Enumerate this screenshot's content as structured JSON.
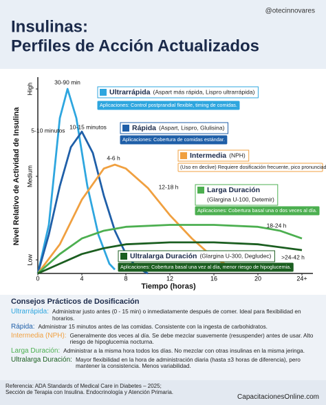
{
  "header": {
    "handle": "@otecinnovares",
    "title_line1": "Insulinas:",
    "title_line2": "Perfiles de Acción Actualizados"
  },
  "chart_data": {
    "type": "line",
    "y_label": "Nivel Relativo de Actividad de Insulina",
    "x_label": "Tiempo (horas)",
    "xlim": [
      0,
      24
    ],
    "ylim": [
      0,
      100
    ],
    "xticks": [
      0,
      4,
      8,
      12,
      16,
      20,
      {
        "value": 24,
        "label": "24+"
      }
    ],
    "yticks": [
      {
        "value": 7,
        "label": "Low"
      },
      {
        "value": 50,
        "label": "Medium"
      },
      {
        "value": 95,
        "label": "High"
      }
    ],
    "annotations": [
      "30-90 min",
      "5-10 minutos",
      "10-15 minutos",
      "4-6 h",
      "12-18 h",
      "18-24 h",
      ">24-42 h"
    ],
    "series": [
      {
        "name": "Ultrarrápida",
        "detail": "(Aspart más rápida, Lispro ultrarrápida)",
        "note": "Aplicaciones: Control postprandial flexible, timing de comidas.",
        "color": "#2ea6df",
        "x": [
          0,
          1,
          2,
          2.7,
          3.5,
          4.5,
          5.5,
          6.5,
          7
        ],
        "values": [
          0,
          25,
          80,
          95,
          80,
          45,
          20,
          5,
          2
        ]
      },
      {
        "name": "Rápida",
        "detail": "(Aspart, Lispro, Glulisina)",
        "note": "Aplicaciones: Cobertura de comidas estándar.",
        "color": "#1f5fa8",
        "x": [
          0,
          1,
          2,
          3,
          4,
          5,
          6,
          7,
          8,
          9,
          10
        ],
        "values": [
          0,
          20,
          45,
          65,
          73,
          62,
          40,
          22,
          10,
          3,
          0
        ]
      },
      {
        "name": "Intermedia",
        "detail": "(NPH)",
        "note": "(Uso en declive) Requiere dosificación frecuente, pico pronunciado.",
        "color": "#f0a040",
        "x": [
          0,
          2,
          4,
          6,
          7,
          8,
          10,
          12,
          14,
          16,
          18
        ],
        "values": [
          0,
          15,
          38,
          54,
          56,
          54,
          44,
          30,
          18,
          8,
          2
        ]
      },
      {
        "name": "Larga Duración",
        "detail": "(Glargina U-100, Detemir)",
        "note": "Aplicaciones: Cobertura basal una o dos veces al día.",
        "color": "#4caf50",
        "x": [
          0,
          2,
          4,
          6,
          8,
          12,
          16,
          20,
          22,
          24
        ],
        "values": [
          0,
          10,
          18,
          22,
          24,
          25,
          25,
          24,
          22,
          18
        ]
      },
      {
        "name": "Ultralarga Duración",
        "detail": "(Glargina U-300, Degludec)",
        "note": "Aplicaciones: Cobertura basal una vez al día, menor riesgo de hipoglucemia.",
        "color": "#1b5e20",
        "x": [
          0,
          2,
          4,
          6,
          8,
          12,
          16,
          20,
          24
        ],
        "values": [
          0,
          5,
          10,
          13,
          15,
          16,
          16,
          15,
          12
        ]
      }
    ]
  },
  "tips": {
    "title": "Consejos Prácticos de Dosificación",
    "rows": [
      {
        "label": "Ultrarrápida:",
        "text": "Administrar justo antes (0 - 15 min) o inmediatamente después de comer. Ideal para flexibilidad en horarios."
      },
      {
        "label": "Rápida:",
        "text": "Administrar 15 minutos antes de las comidas. Consistente con la ingesta de carbohidratos."
      },
      {
        "label": "Intermedia (NPH):",
        "text": "Generalmente dos veces al día. Se debe mezclar suavemente (resuspender) antes de usar. Alto riesgo de hipoglucemia nocturna."
      },
      {
        "label": "Larga Duración:",
        "text": "Administrar a la misma hora todos los días. No mezclar con otras insulinas en la misma jeringa."
      },
      {
        "label": "Ultralarga Duración:",
        "text": "Mayor flexibilidad en la hora de administración diaria (hasta ±3 horas de diferencia), pero mantener la consistencia. Menos variabilidad."
      }
    ]
  },
  "footer": {
    "ref1": "Referencia: ADA Standards of Medical Care in Diabetes – 2025;",
    "ref2": "Sección de Terapia con Insulina. Endocrinología y Atención Primaria.",
    "site": "CapacitacionesOnline.com"
  }
}
